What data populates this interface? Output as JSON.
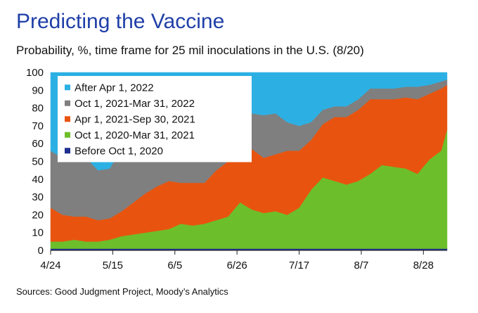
{
  "header": {
    "title": "Predicting the Vaccine",
    "subtitle": "Probability, %, time frame for 25 mil inoculations in the U.S. (8/20)"
  },
  "footer": {
    "source": "Sources: Good Judgment Project, Moody’s Analytics"
  },
  "chart_data": {
    "type": "area",
    "stacked": true,
    "title": "Predicting the Vaccine",
    "subtitle": "Probability, %, time frame for 25 mil inoculations in the U.S. (8/20)",
    "xlabel": "",
    "ylabel": "",
    "ylim": [
      0,
      100
    ],
    "yticks": [
      0,
      10,
      20,
      30,
      40,
      50,
      60,
      70,
      80,
      90,
      100
    ],
    "xrange": [
      "2020-04-24",
      "2020-09-05"
    ],
    "xticks": [
      {
        "date": "2020-04-24",
        "label": "4/24"
      },
      {
        "date": "2020-05-15",
        "label": "5/15"
      },
      {
        "date": "2020-06-05",
        "label": "6/5"
      },
      {
        "date": "2020-06-26",
        "label": "6/26"
      },
      {
        "date": "2020-07-17",
        "label": "7/17"
      },
      {
        "date": "2020-08-07",
        "label": "8/7"
      },
      {
        "date": "2020-08-28",
        "label": "8/28"
      }
    ],
    "grid": false,
    "legend_position": "top-left",
    "x": [
      "2020-04-24",
      "2020-04-28",
      "2020-05-02",
      "2020-05-06",
      "2020-05-10",
      "2020-05-14",
      "2020-05-18",
      "2020-05-22",
      "2020-05-26",
      "2020-05-30",
      "2020-06-03",
      "2020-06-07",
      "2020-06-11",
      "2020-06-15",
      "2020-06-19",
      "2020-06-23",
      "2020-06-27",
      "2020-07-01",
      "2020-07-05",
      "2020-07-09",
      "2020-07-13",
      "2020-07-17",
      "2020-07-21",
      "2020-07-25",
      "2020-07-29",
      "2020-08-02",
      "2020-08-06",
      "2020-08-10",
      "2020-08-14",
      "2020-08-18",
      "2020-08-22",
      "2020-08-26",
      "2020-08-30",
      "2020-09-03",
      "2020-09-05"
    ],
    "series": [
      {
        "name": "Before Oct 1, 2020",
        "color": "#1f2f8f",
        "values": [
          1,
          1,
          1,
          1,
          1,
          1,
          1,
          1,
          1,
          1,
          1,
          1,
          1,
          1,
          1,
          1,
          1,
          1,
          1,
          1,
          1,
          1,
          1,
          1,
          1,
          1,
          1,
          1,
          1,
          1,
          1,
          1,
          1,
          1,
          1
        ]
      },
      {
        "name": "Oct 1, 2020-Mar 31, 2021",
        "color": "#6cbf2a",
        "values": [
          4,
          4,
          5,
          4,
          4,
          5,
          7,
          8,
          9,
          10,
          11,
          14,
          13,
          14,
          16,
          18,
          26,
          22,
          20,
          21,
          19,
          23,
          33,
          40,
          38,
          36,
          38,
          42,
          47,
          46,
          45,
          42,
          50,
          55,
          67
        ]
      },
      {
        "name": "Apr 1, 2021-Sep 30, 2021",
        "color": "#e8540f",
        "values": [
          19,
          15,
          13,
          14,
          12,
          12,
          14,
          18,
          22,
          25,
          27,
          23,
          24,
          23,
          28,
          31,
          35,
          34,
          31,
          32,
          36,
          32,
          28,
          30,
          36,
          38,
          40,
          42,
          37,
          38,
          40,
          42,
          37,
          35,
          25
        ]
      },
      {
        "name": "Oct 1, 2021-Mar 31, 2022",
        "color": "#7f7f7f",
        "values": [
          32,
          32,
          32,
          33,
          28,
          28,
          36,
          32,
          22,
          24,
          20,
          20,
          22,
          21,
          20,
          22,
          19,
          20,
          24,
          23,
          16,
          14,
          10,
          8,
          6,
          6,
          6,
          6,
          6,
          6,
          6,
          7,
          5,
          4,
          3
        ]
      },
      {
        "name": "After Apr 1, 2022",
        "color": "#2cb0e3",
        "values": [
          44,
          48,
          49,
          48,
          55,
          54,
          42,
          41,
          46,
          40,
          41,
          42,
          40,
          41,
          35,
          28,
          19,
          23,
          24,
          23,
          28,
          30,
          28,
          21,
          19,
          19,
          15,
          9,
          9,
          9,
          8,
          8,
          7,
          5,
          4
        ]
      }
    ]
  }
}
